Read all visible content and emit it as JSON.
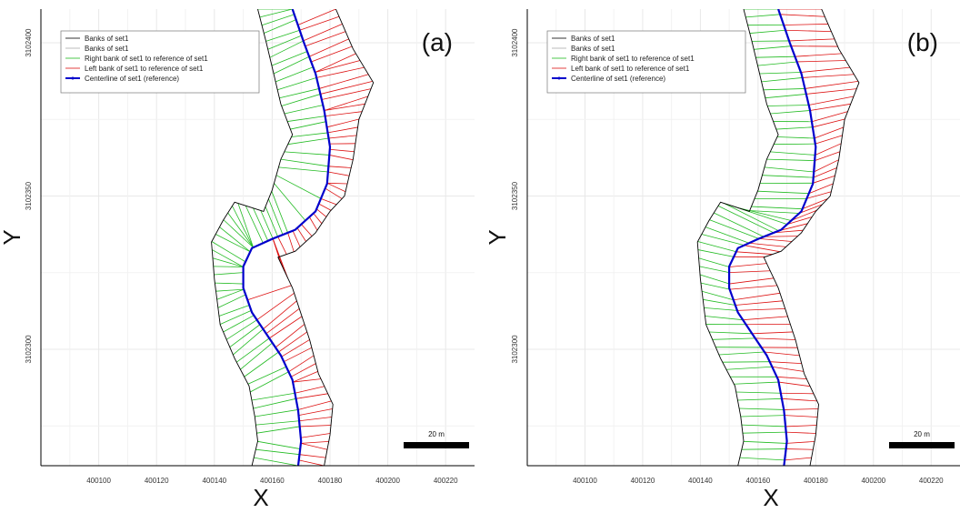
{
  "colors": {
    "bank": "#000000",
    "banks_alt": "#aaaaaa",
    "right_bank_lines": "#22bb22",
    "left_bank_lines": "#dd1111",
    "centerline": "#0000cc",
    "grid": "#e8e8e8"
  },
  "chart_data": [
    {
      "type": "line",
      "panel_label": "(a)",
      "xlabel": "X",
      "ylabel": "Y",
      "xlim": [
        400080,
        400230
      ],
      "ylim": [
        3102262,
        3102411
      ],
      "x_ticks": [
        400100,
        400120,
        400140,
        400160,
        400180,
        400200,
        400220
      ],
      "x_tick_labels": [
        "400100",
        "400120",
        "400140",
        "400160",
        "400180",
        "400200",
        "400220"
      ],
      "y_ticks": [
        3102300,
        3102350,
        3102400
      ],
      "y_tick_labels": [
        "3102300",
        "3102350",
        "3102400"
      ],
      "grid": true,
      "legend_position": "top-left",
      "legend": [
        "Banks of set1",
        "Banks of set1",
        "Right bank of set1 to reference of set1",
        "Left bank of set1 to reference of set1",
        "Centerline of set1 (reference)"
      ],
      "scale_bar": "20 m",
      "series": [
        {
          "name": "Centerline of set1 (reference)",
          "points": [
            [
              400167,
              3102411
            ],
            [
              400171,
              3102400
            ],
            [
              400175,
              3102390
            ],
            [
              400178,
              3102378
            ],
            [
              400180,
              3102366
            ],
            [
              400179,
              3102354
            ],
            [
              400175,
              3102345
            ],
            [
              400168,
              3102339
            ],
            [
              400160,
              3102336
            ],
            [
              400153,
              3102333
            ],
            [
              400150,
              3102327
            ],
            [
              400150,
              3102320
            ],
            [
              400153,
              3102312
            ],
            [
              400158,
              3102305
            ],
            [
              400163,
              3102298
            ],
            [
              400167,
              3102290
            ],
            [
              400169,
              3102280
            ],
            [
              400170,
              3102270
            ],
            [
              400169,
              3102262
            ]
          ]
        },
        {
          "name": "Right bank",
          "points": [
            [
              400155,
              3102411
            ],
            [
              400158,
              3102400
            ],
            [
              400160,
              3102392
            ],
            [
              400163,
              3102380
            ],
            [
              400167,
              3102370
            ],
            [
              400163,
              3102362
            ],
            [
              400160,
              3102352
            ],
            [
              400157,
              3102345
            ],
            [
              400147,
              3102348
            ],
            [
              400143,
              3102342
            ],
            [
              400139,
              3102335
            ],
            [
              400140,
              3102323
            ],
            [
              400142,
              3102308
            ],
            [
              400147,
              3102297
            ],
            [
              400152,
              3102288
            ],
            [
              400154,
              3102278
            ],
            [
              400155,
              3102270
            ],
            [
              400153,
              3102262
            ]
          ]
        },
        {
          "name": "Left bank",
          "points": [
            [
              400182,
              3102411
            ],
            [
              400188,
              3102398
            ],
            [
              400195,
              3102387
            ],
            [
              400190,
              3102375
            ],
            [
              400188,
              3102362
            ],
            [
              400185,
              3102350
            ],
            [
              400180,
              3102345
            ],
            [
              400175,
              3102338
            ],
            [
              400168,
              3102332
            ],
            [
              400162,
              3102330
            ],
            [
              400167,
              3102320
            ],
            [
              400173,
              3102303
            ],
            [
              400176,
              3102292
            ],
            [
              400181,
              3102282
            ],
            [
              400180,
              3102272
            ],
            [
              400178,
              3102262
            ]
          ]
        }
      ]
    },
    {
      "type": "line",
      "panel_label": "(b)",
      "xlabel": "X",
      "ylabel": "Y",
      "xlim": [
        400080,
        400230
      ],
      "ylim": [
        3102262,
        3102411
      ],
      "x_ticks": [
        400100,
        400120,
        400140,
        400160,
        400180,
        400200,
        400220
      ],
      "x_tick_labels": [
        "400100",
        "400120",
        "400140",
        "400160",
        "400180",
        "400200",
        "400220"
      ],
      "y_ticks": [
        3102300,
        3102350,
        3102400
      ],
      "y_tick_labels": [
        "3102300",
        "3102350",
        "3102400"
      ],
      "grid": true,
      "legend_position": "top-left",
      "legend": [
        "Banks of set1",
        "Banks of set1",
        "Right bank of set1 to reference of set1",
        "Left bank of set1 to reference of set1",
        "Centerline of set1 (reference)"
      ],
      "scale_bar": "20 m",
      "series": [
        {
          "name": "Centerline of set1 (reference)",
          "points": [
            [
              400167,
              3102411
            ],
            [
              400171,
              3102400
            ],
            [
              400175,
              3102390
            ],
            [
              400178,
              3102378
            ],
            [
              400180,
              3102366
            ],
            [
              400179,
              3102354
            ],
            [
              400175,
              3102345
            ],
            [
              400168,
              3102339
            ],
            [
              400160,
              3102336
            ],
            [
              400153,
              3102333
            ],
            [
              400150,
              3102327
            ],
            [
              400150,
              3102320
            ],
            [
              400153,
              3102312
            ],
            [
              400158,
              3102305
            ],
            [
              400163,
              3102298
            ],
            [
              400167,
              3102290
            ],
            [
              400169,
              3102280
            ],
            [
              400170,
              3102270
            ],
            [
              400169,
              3102262
            ]
          ]
        },
        {
          "name": "Right bank",
          "points": [
            [
              400155,
              3102411
            ],
            [
              400158,
              3102400
            ],
            [
              400160,
              3102392
            ],
            [
              400163,
              3102380
            ],
            [
              400167,
              3102370
            ],
            [
              400163,
              3102362
            ],
            [
              400160,
              3102352
            ],
            [
              400157,
              3102345
            ],
            [
              400147,
              3102348
            ],
            [
              400143,
              3102342
            ],
            [
              400139,
              3102335
            ],
            [
              400140,
              3102323
            ],
            [
              400142,
              3102308
            ],
            [
              400147,
              3102297
            ],
            [
              400152,
              3102288
            ],
            [
              400154,
              3102278
            ],
            [
              400155,
              3102270
            ],
            [
              400153,
              3102262
            ]
          ]
        },
        {
          "name": "Left bank",
          "points": [
            [
              400182,
              3102411
            ],
            [
              400188,
              3102398
            ],
            [
              400195,
              3102387
            ],
            [
              400190,
              3102375
            ],
            [
              400188,
              3102362
            ],
            [
              400185,
              3102350
            ],
            [
              400180,
              3102345
            ],
            [
              400175,
              3102338
            ],
            [
              400168,
              3102332
            ],
            [
              400162,
              3102330
            ],
            [
              400167,
              3102320
            ],
            [
              400173,
              3102303
            ],
            [
              400176,
              3102292
            ],
            [
              400181,
              3102282
            ],
            [
              400180,
              3102272
            ],
            [
              400178,
              3102262
            ]
          ]
        }
      ]
    }
  ]
}
